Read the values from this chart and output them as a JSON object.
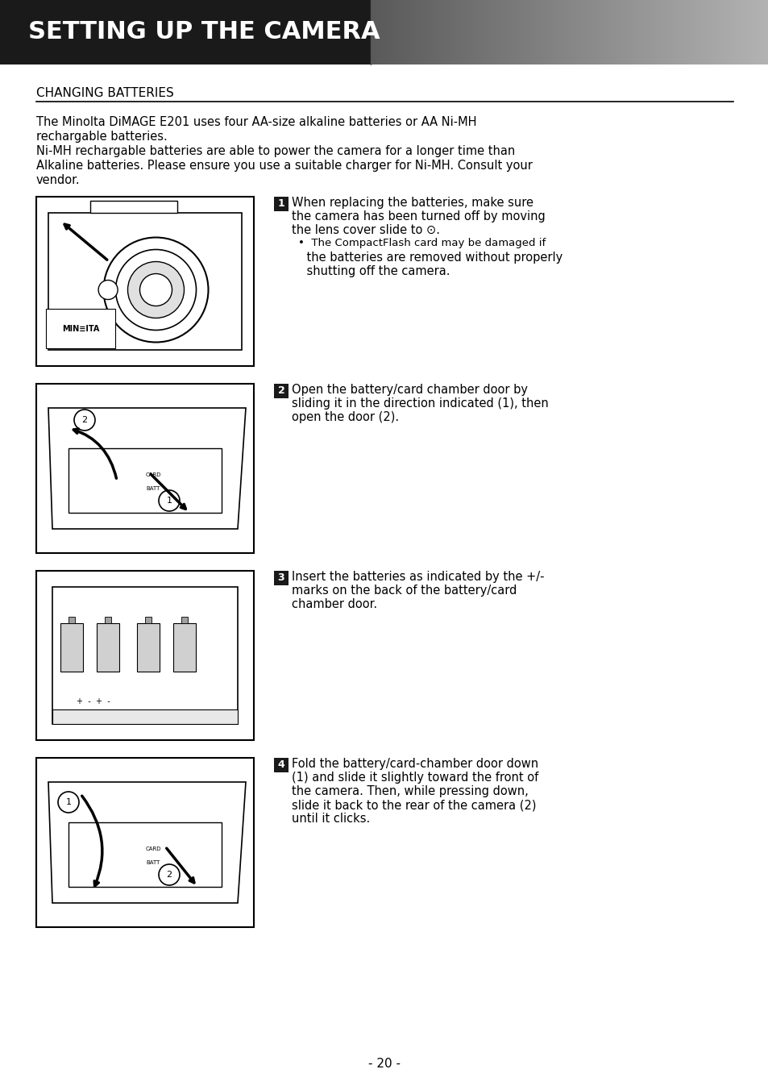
{
  "page_title": "SETTING UP THE CAMERA",
  "section_title": "CHANGING BATTERIES",
  "intro_text": "The Minolta DiMAGE E201 uses four AA-size alkaline batteries or AA Ni-MH\nrechargable batteries.\nNi-MH rechargable batteries are able to power the camera for a longer time than\nAlkaline batteries. Please ensure you use a suitable charger for Ni-MH. Consult your\nvendor.",
  "steps": [
    {
      "num": "1",
      "text": "When replacing the batteries, make sure\nthe camera has been turned off by moving\nthe lens cover slide to ⊙.\n•  The CompactFlash card may be damaged if\n    the batteries are removed without properly\n    shutting off the camera."
    },
    {
      "num": "2",
      "text": "Open the battery/card chamber door by\nsliding it in the direction indicated (1), then\nopen the door (2)."
    },
    {
      "num": "3",
      "text": "Insert the batteries as indicated by the +/-\nmarks on the back of the battery/card\nchamber door."
    },
    {
      "num": "4",
      "text": "Fold the battery/card-chamber door down\n(1) and slide it slightly toward the front of\nthe camera. Then, while pressing down,\nslide it back to the rear of the camera (2)\nuntil it clicks."
    }
  ],
  "page_num": "- 20 -",
  "header_bg_left": "#1a1a1a",
  "header_bg_right": "#808080",
  "header_text_color": "#ffffff",
  "body_bg": "#ffffff",
  "text_color": "#000000",
  "section_title_color": "#000000",
  "step_num_bg": "#1a1a1a",
  "step_num_color": "#ffffff",
  "image_border_color": "#000000",
  "image_bg": "#f5f5f5"
}
